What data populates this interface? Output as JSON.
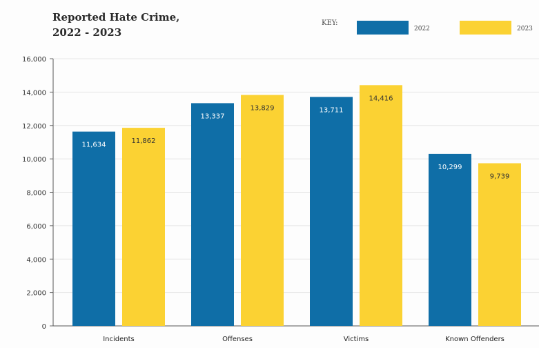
{
  "chart_data": {
    "type": "bar",
    "title": [
      "Reported Hate Crime,",
      "2022 - 2023"
    ],
    "legend_title": "KEY:",
    "legend_position": "top-right",
    "categories": [
      "Incidents",
      "Offenses",
      "Victims",
      "Known Offenders"
    ],
    "series": [
      {
        "name": "2022",
        "color": "#0f6ea7",
        "values": [
          11634,
          13337,
          13711,
          10299
        ],
        "labels": [
          "11,634",
          "13,337",
          "13,711",
          "10,299"
        ],
        "label_color": "#ffffff"
      },
      {
        "name": "2023",
        "color": "#fbd233",
        "values": [
          11862,
          13829,
          14416,
          9739
        ],
        "labels": [
          "11,862",
          "13,829",
          "14,416",
          "9,739"
        ],
        "label_color": "#333333"
      }
    ],
    "ylim": [
      0,
      16000
    ],
    "yticks": [
      0,
      2000,
      4000,
      6000,
      8000,
      10000,
      12000,
      14000,
      16000
    ],
    "ytick_labels": [
      "0",
      "2,000",
      "4,000",
      "6,000",
      "8,000",
      "10,000",
      "12,000",
      "14,000",
      "16,000"
    ],
    "grid": true
  }
}
